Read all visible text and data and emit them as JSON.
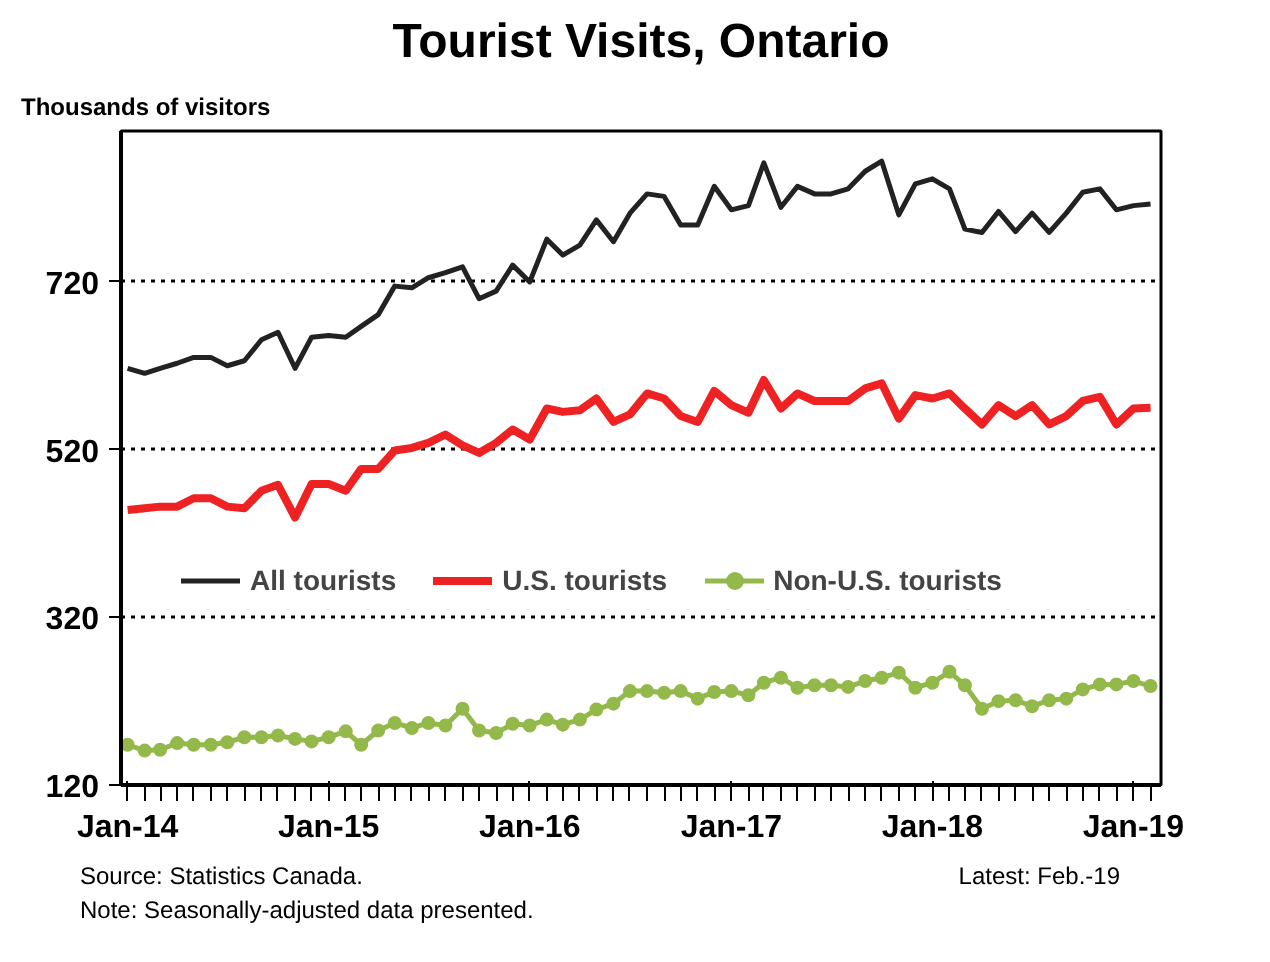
{
  "chart_data": {
    "type": "line",
    "title": "Tourist Visits, Ontario",
    "ylabel": "Thousands of visitors",
    "x": [
      "2014-01",
      "2014-02",
      "2014-03",
      "2014-04",
      "2014-05",
      "2014-06",
      "2014-07",
      "2014-08",
      "2014-09",
      "2014-10",
      "2014-11",
      "2014-12",
      "2015-01",
      "2015-02",
      "2015-03",
      "2015-04",
      "2015-05",
      "2015-06",
      "2015-07",
      "2015-08",
      "2015-09",
      "2015-10",
      "2015-11",
      "2015-12",
      "2016-01",
      "2016-02",
      "2016-03",
      "2016-04",
      "2016-05",
      "2016-06",
      "2016-07",
      "2016-08",
      "2016-09",
      "2016-10",
      "2016-11",
      "2016-12",
      "2017-01",
      "2017-02",
      "2017-03",
      "2017-04",
      "2017-05",
      "2017-06",
      "2017-07",
      "2017-08",
      "2017-09",
      "2017-10",
      "2017-11",
      "2017-12",
      "2018-01",
      "2018-02",
      "2018-03",
      "2018-04",
      "2018-05",
      "2018-06",
      "2018-07",
      "2018-08",
      "2018-09",
      "2018-10",
      "2018-11",
      "2018-12",
      "2019-01",
      "2019-02"
    ],
    "series": [
      {
        "name": "All tourists",
        "color": "#222222",
        "line_style": "solid",
        "marker": "none",
        "values": [
          617,
          611,
          617,
          623,
          630,
          630,
          620,
          626,
          651,
          660,
          617,
          654,
          656,
          654,
          667,
          681,
          715,
          713,
          725,
          731,
          738,
          700,
          709,
          740,
          720,
          771,
          752,
          764,
          794,
          768,
          802,
          825,
          822,
          788,
          788,
          834,
          806,
          811,
          862,
          809,
          834,
          825,
          825,
          831,
          852,
          864,
          800,
          837,
          843,
          831,
          783,
          779,
          804,
          780,
          802,
          779,
          802,
          827,
          831,
          806,
          811,
          813
        ]
      },
      {
        "name": "U.S. tourists",
        "color": "#ee2222",
        "line_style": "solid",
        "marker": "none",
        "values": [
          448,
          450,
          452,
          452,
          462,
          462,
          452,
          450,
          471,
          478,
          439,
          479,
          479,
          471,
          497,
          497,
          519,
          522,
          528,
          538,
          525,
          516,
          528,
          544,
          532,
          569,
          565,
          567,
          581,
          553,
          562,
          587,
          581,
          560,
          553,
          590,
          573,
          564,
          603,
          569,
          587,
          578,
          578,
          578,
          593,
          599,
          557,
          585,
          581,
          587,
          569,
          550,
          573,
          560,
          573,
          550,
          560,
          578,
          583,
          550,
          569,
          570
        ]
      },
      {
        "name": "Non-U.S. tourists",
        "color": "#92b94a",
        "line_style": "solid",
        "marker": "circle",
        "values": [
          168,
          161,
          162,
          170,
          168,
          168,
          171,
          177,
          177,
          179,
          175,
          172,
          177,
          184,
          168,
          185,
          194,
          188,
          194,
          191,
          211,
          185,
          182,
          193,
          191,
          198,
          192,
          198,
          210,
          217,
          232,
          232,
          230,
          232,
          223,
          231,
          232,
          227,
          242,
          248,
          236,
          239,
          239,
          237,
          244,
          248,
          254,
          236,
          242,
          255,
          239,
          211,
          220,
          221,
          214,
          221,
          223,
          234,
          240,
          240,
          244,
          238
        ]
      }
    ],
    "xlim": [
      "2013-12-20",
      "2019-02-20"
    ],
    "xticks": [
      {
        "value": "2014-01",
        "label": "Jan-14"
      },
      {
        "value": "2015-01",
        "label": "Jan-15"
      },
      {
        "value": "2016-01",
        "label": "Jan-16"
      },
      {
        "value": "2017-01",
        "label": "Jan-17"
      },
      {
        "value": "2018-01",
        "label": "Jan-18"
      },
      {
        "value": "2019-01",
        "label": "Jan-19"
      }
    ],
    "ylim": [
      120,
      900
    ],
    "yticks": [
      120,
      320,
      520,
      720
    ],
    "grid": "y",
    "legend": "center",
    "annotations": [
      "Source: Statistics Canada.",
      "Latest: Feb.-19",
      "Note: Seasonally-adjusted data presented."
    ]
  }
}
